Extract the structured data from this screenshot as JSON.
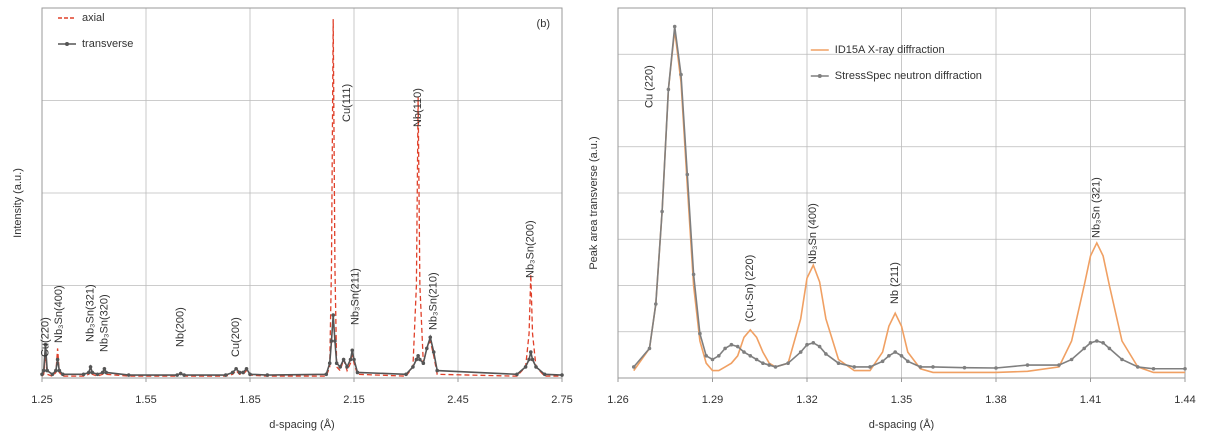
{
  "chart_data": [
    {
      "type": "line",
      "panel_label": "(b)",
      "x_label": "d-spacing (Å)",
      "y_label": "Intensity (a.u.)",
      "xlim": [
        1.25,
        2.75
      ],
      "xticks": [
        1.25,
        1.55,
        1.85,
        2.15,
        2.45,
        2.75
      ],
      "ylim": [
        0,
        100
      ],
      "ygrid": [
        25,
        50,
        75
      ],
      "grid": true,
      "legend": "upper left",
      "x": [
        1.25,
        1.255,
        1.26,
        1.265,
        1.28,
        1.29,
        1.295,
        1.3,
        1.31,
        1.37,
        1.385,
        1.39,
        1.395,
        1.41,
        1.425,
        1.43,
        1.435,
        1.5,
        1.64,
        1.65,
        1.66,
        1.78,
        1.8,
        1.81,
        1.82,
        1.83,
        1.84,
        1.85,
        1.9,
        2.07,
        2.08,
        2.085,
        2.09,
        2.095,
        2.1,
        2.11,
        2.12,
        2.13,
        2.14,
        2.145,
        2.15,
        2.16,
        2.3,
        2.32,
        2.33,
        2.335,
        2.34,
        2.35,
        2.36,
        2.37,
        2.38,
        2.39,
        2.62,
        2.645,
        2.655,
        2.66,
        2.665,
        2.675,
        2.7,
        2.75
      ],
      "series": [
        {
          "name": "axial",
          "color": "#e0402a",
          "dashed": true,
          "markers": false,
          "values": [
            0.5,
            1,
            6,
            1,
            0.5,
            1.5,
            8,
            1.5,
            0.5,
            0.5,
            1,
            3,
            1,
            0.5,
            1,
            2.5,
            1,
            0.5,
            0.5,
            1.5,
            0.5,
            0.5,
            1,
            2,
            1,
            1,
            2,
            0.8,
            0.5,
            0.5,
            3,
            30,
            97,
            30,
            3,
            2,
            5,
            2,
            4,
            7,
            4,
            1,
            0.5,
            3,
            25,
            76,
            25,
            4,
            8,
            10,
            6,
            1,
            0.5,
            3,
            12,
            28,
            12,
            3,
            0.5,
            0.5
          ]
        },
        {
          "name": "transverse",
          "color": "#555555",
          "dashed": false,
          "markers": true,
          "values": [
            1,
            2,
            9,
            2,
            1,
            2,
            5,
            2,
            1,
            1,
            1.5,
            3,
            1.5,
            1,
            1.5,
            2.5,
            1.5,
            0.8,
            0.8,
            1.2,
            0.8,
            0.8,
            1.5,
            2.5,
            1.5,
            1.5,
            2.5,
            1,
            0.8,
            1,
            4,
            10,
            17,
            10,
            4,
            3,
            5,
            3,
            5,
            7.5,
            5,
            1.5,
            1,
            3,
            5,
            6,
            5,
            4,
            8,
            11,
            7,
            2,
            1,
            3,
            5,
            7,
            5,
            3,
            1,
            0.8
          ]
        }
      ],
      "annotations": [
        {
          "text": "Cu(220)",
          "x": 1.26
        },
        {
          "text": "Nb₃Sn(400)",
          "x": 1.3
        },
        {
          "text": "Nb₃Sn(321)",
          "x": 1.39
        },
        {
          "text": "Nb₃Sn(320)",
          "x": 1.43
        },
        {
          "text": "Nb(200)",
          "x": 1.65
        },
        {
          "text": "Cu(200)",
          "x": 1.81
        },
        {
          "text": "Cu(111)",
          "x": 2.13
        },
        {
          "text": "Nb₃Sn(211)",
          "x": 2.155
        },
        {
          "text": "Nb(110)",
          "x": 2.335
        },
        {
          "text": "Nb₃Sn(210)",
          "x": 2.38
        },
        {
          "text": "Nb₃Sn(200)",
          "x": 2.66
        }
      ]
    },
    {
      "type": "line",
      "x_label": "d-spacing (Å)",
      "y_label": "Peak area transverse (a.u.)",
      "xlim": [
        1.26,
        1.44
      ],
      "xticks": [
        1.26,
        1.29,
        1.32,
        1.35,
        1.38,
        1.41,
        1.44
      ],
      "ylim": [
        0,
        100
      ],
      "ygrid": [
        12.5,
        25,
        37.5,
        50,
        62.5,
        75,
        87.5
      ],
      "grid": true,
      "legend": "upper center",
      "x": [
        1.265,
        1.27,
        1.272,
        1.274,
        1.276,
        1.278,
        1.28,
        1.282,
        1.284,
        1.286,
        1.288,
        1.29,
        1.292,
        1.294,
        1.296,
        1.298,
        1.3,
        1.302,
        1.304,
        1.306,
        1.308,
        1.31,
        1.314,
        1.318,
        1.32,
        1.322,
        1.324,
        1.326,
        1.33,
        1.335,
        1.34,
        1.344,
        1.346,
        1.348,
        1.35,
        1.352,
        1.356,
        1.36,
        1.37,
        1.38,
        1.39,
        1.4,
        1.404,
        1.408,
        1.41,
        1.412,
        1.414,
        1.416,
        1.42,
        1.425,
        1.43,
        1.44
      ],
      "series": [
        {
          "name": "ID15A X-ray diffraction",
          "color": "#f0a063",
          "dashed": false,
          "markers": false,
          "values": [
            2,
            8,
            20,
            45,
            78,
            94,
            80,
            52,
            25,
            10,
            4,
            2,
            2,
            3,
            4,
            6,
            11,
            13,
            11,
            7,
            4,
            3,
            4,
            16,
            27,
            30.5,
            26,
            16,
            5,
            2,
            2,
            7,
            14,
            17.5,
            14,
            7,
            2.5,
            1.5,
            1.5,
            1.5,
            1.8,
            3,
            10,
            25,
            33,
            36.5,
            33,
            25,
            10,
            3,
            1.5,
            1.5
          ]
        },
        {
          "name": "StressSpec neutron diffraction",
          "color": "#7f7f7f",
          "dashed": false,
          "markers": true,
          "values": [
            3,
            8,
            20,
            45,
            78,
            95,
            82,
            55,
            28,
            12,
            6,
            5,
            6,
            8,
            9,
            8.5,
            7,
            6,
            5,
            4,
            3.5,
            3,
            4,
            7,
            9,
            9.5,
            8.5,
            6.5,
            4,
            3,
            3,
            4.5,
            6,
            7,
            6,
            4.5,
            3,
            3,
            2.8,
            2.7,
            3.5,
            3.5,
            5,
            8,
            9.5,
            10,
            9.5,
            8,
            5,
            3,
            2.5,
            2.5
          ]
        }
      ],
      "annotations": [
        {
          "text": "Cu (220)",
          "x": 1.27
        },
        {
          "text": "(Cu-Sn) (220)",
          "x": 1.302
        },
        {
          "text": "Nb₃Sn (400)",
          "x": 1.322
        },
        {
          "text": "Nb (211)",
          "x": 1.348
        },
        {
          "text": "Nb₃Sn (321)",
          "x": 1.412
        }
      ]
    }
  ]
}
